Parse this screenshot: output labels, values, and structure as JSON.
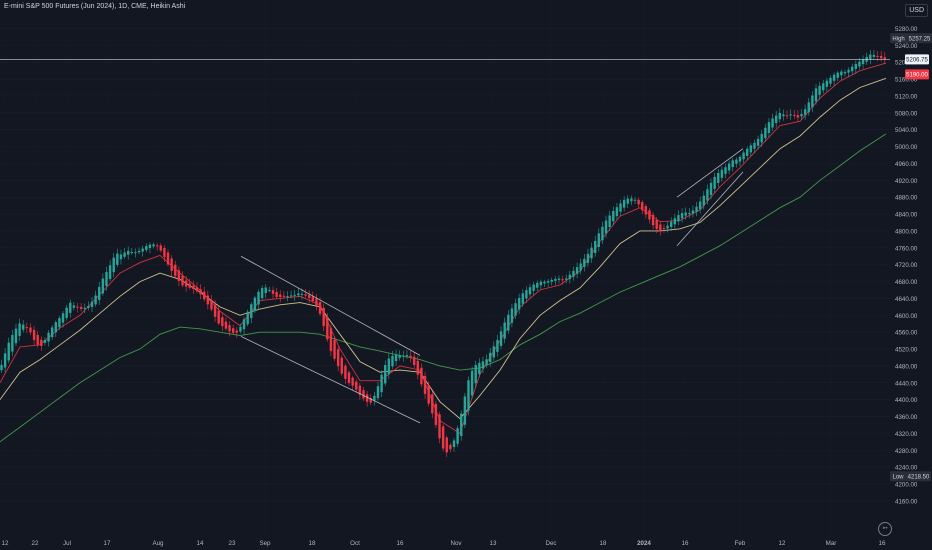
{
  "header": {
    "title": "E-mini S&P 500 Futures (Jun 2024), 1D, CME, Heikin Ashi",
    "currency": "USD"
  },
  "colors": {
    "background": "#131722",
    "up": "#26a69a",
    "down": "#f23645",
    "ema_red": "#f23645",
    "ema_yellow": "#f0e0a0",
    "sma_green": "#4caf50",
    "trendline": "#d1d4dc",
    "axis_text": "#b2b5be"
  },
  "icons": {
    "logo": "tradingview-logo-icon"
  },
  "chart_data": {
    "type": "candlestick",
    "title": "E-mini S&P 500 Futures (Jun 2024), 1D, CME, Heikin Ashi",
    "ylim": [
      4140,
      5320
    ],
    "y_ticks": [
      5280,
      5240,
      5200,
      5160,
      5120,
      5080,
      5040,
      5000,
      4960,
      4920,
      4880,
      4840,
      4800,
      4760,
      4720,
      4680,
      4640,
      4600,
      4560,
      4520,
      4480,
      4440,
      4400,
      4360,
      4320,
      4280,
      4240,
      4200,
      4160
    ],
    "y_tick_labels": [
      "5280.00",
      "5240.00",
      "5200.00",
      "5160.00",
      "5120.00",
      "5080.00",
      "5040.00",
      "5000.00",
      "4960.00",
      "4920.00",
      "4880.00",
      "4840.00",
      "4800.00",
      "4760.00",
      "4720.00",
      "4680.00",
      "4640.00",
      "4600.00",
      "4560.00",
      "4520.00",
      "4480.00",
      "4440.00",
      "4400.00",
      "4360.00",
      "4320.00",
      "4280.00",
      "4240.00",
      "4200.00",
      "4160.00"
    ],
    "x_tick_labels": [
      "12",
      "22",
      "Jul",
      "17",
      "Aug",
      "14",
      "23",
      "Sep",
      "18",
      "Oct",
      "16",
      "Nov",
      "13",
      "Dec",
      "18",
      "2024",
      "16",
      "Feb",
      "12",
      "Mar",
      "16"
    ],
    "price_labels": {
      "high_label": "High",
      "high_value": "5257.25",
      "low_label": "Low",
      "low_value": "4218.50",
      "last_value": "5206.75",
      "last_value_sub": "5190.00"
    },
    "horizontal_line": 5206.75,
    "close_path": [
      [
        0,
        4470
      ],
      [
        8,
        4530
      ],
      [
        14,
        4560
      ],
      [
        20,
        4580
      ],
      [
        24,
        4575
      ],
      [
        30,
        4560
      ],
      [
        36,
        4530
      ],
      [
        42,
        4525
      ],
      [
        48,
        4555
      ],
      [
        55,
        4580
      ],
      [
        62,
        4600
      ],
      [
        70,
        4630
      ],
      [
        76,
        4620
      ],
      [
        82,
        4615
      ],
      [
        90,
        4625
      ],
      [
        96,
        4650
      ],
      [
        102,
        4685
      ],
      [
        110,
        4720
      ],
      [
        116,
        4750
      ],
      [
        120,
        4745
      ],
      [
        128,
        4755
      ],
      [
        134,
        4750
      ],
      [
        140,
        4755
      ],
      [
        146,
        4765
      ],
      [
        152,
        4770
      ],
      [
        158,
        4765
      ],
      [
        164,
        4740
      ],
      [
        170,
        4710
      ],
      [
        176,
        4690
      ],
      [
        182,
        4670
      ],
      [
        188,
        4665
      ],
      [
        194,
        4660
      ],
      [
        200,
        4650
      ],
      [
        206,
        4630
      ],
      [
        212,
        4610
      ],
      [
        218,
        4580
      ],
      [
        224,
        4570
      ],
      [
        230,
        4560
      ],
      [
        236,
        4555
      ],
      [
        240,
        4570
      ],
      [
        246,
        4600
      ],
      [
        252,
        4630
      ],
      [
        258,
        4655
      ],
      [
        264,
        4670
      ],
      [
        270,
        4660
      ],
      [
        276,
        4645
      ],
      [
        282,
        4645
      ],
      [
        288,
        4648
      ],
      [
        294,
        4650
      ],
      [
        300,
        4655
      ],
      [
        306,
        4648
      ],
      [
        312,
        4638
      ],
      [
        318,
        4620
      ],
      [
        322,
        4590
      ],
      [
        326,
        4555
      ],
      [
        330,
        4520
      ],
      [
        336,
        4490
      ],
      [
        342,
        4460
      ],
      [
        348,
        4440
      ],
      [
        354,
        4430
      ],
      [
        360,
        4410
      ],
      [
        366,
        4395
      ],
      [
        370,
        4388
      ],
      [
        374,
        4405
      ],
      [
        378,
        4430
      ],
      [
        382,
        4460
      ],
      [
        386,
        4485
      ],
      [
        390,
        4500
      ],
      [
        396,
        4505
      ],
      [
        402,
        4502
      ],
      [
        408,
        4505
      ],
      [
        412,
        4495
      ],
      [
        416,
        4470
      ],
      [
        420,
        4445
      ],
      [
        424,
        4420
      ],
      [
        428,
        4395
      ],
      [
        432,
        4370
      ],
      [
        436,
        4340
      ],
      [
        440,
        4305
      ],
      [
        444,
        4280
      ],
      [
        448,
        4275
      ],
      [
        452,
        4290
      ],
      [
        456,
        4320
      ],
      [
        460,
        4355
      ],
      [
        464,
        4400
      ],
      [
        468,
        4445
      ],
      [
        472,
        4470
      ],
      [
        476,
        4485
      ],
      [
        480,
        4490
      ],
      [
        486,
        4495
      ],
      [
        492,
        4520
      ],
      [
        498,
        4545
      ],
      [
        504,
        4580
      ],
      [
        510,
        4610
      ],
      [
        516,
        4630
      ],
      [
        522,
        4650
      ],
      [
        528,
        4662
      ],
      [
        534,
        4672
      ],
      [
        540,
        4678
      ],
      [
        546,
        4678
      ],
      [
        552,
        4682
      ],
      [
        558,
        4686
      ],
      [
        564,
        4680
      ],
      [
        570,
        4695
      ],
      [
        576,
        4710
      ],
      [
        582,
        4725
      ],
      [
        588,
        4745
      ],
      [
        594,
        4770
      ],
      [
        600,
        4800
      ],
      [
        606,
        4825
      ],
      [
        612,
        4845
      ],
      [
        618,
        4860
      ],
      [
        624,
        4875
      ],
      [
        630,
        4880
      ],
      [
        636,
        4875
      ],
      [
        642,
        4852
      ],
      [
        648,
        4835
      ],
      [
        654,
        4812
      ],
      [
        660,
        4800
      ],
      [
        666,
        4810
      ],
      [
        672,
        4825
      ],
      [
        678,
        4838
      ],
      [
        684,
        4845
      ],
      [
        690,
        4842
      ],
      [
        696,
        4855
      ],
      [
        702,
        4875
      ],
      [
        708,
        4900
      ],
      [
        714,
        4925
      ],
      [
        720,
        4940
      ],
      [
        726,
        4950
      ],
      [
        732,
        4965
      ],
      [
        738,
        4968
      ],
      [
        744,
        4985
      ],
      [
        750,
        5000
      ],
      [
        756,
        5010
      ],
      [
        762,
        5030
      ],
      [
        768,
        5055
      ],
      [
        774,
        5070
      ],
      [
        780,
        5080
      ],
      [
        786,
        5074
      ],
      [
        792,
        5078
      ],
      [
        798,
        5070
      ],
      [
        804,
        5085
      ],
      [
        810,
        5112
      ],
      [
        816,
        5140
      ],
      [
        822,
        5150
      ],
      [
        828,
        5160
      ],
      [
        834,
        5172
      ],
      [
        840,
        5180
      ],
      [
        846,
        5178
      ],
      [
        852,
        5190
      ],
      [
        858,
        5200
      ],
      [
        864,
        5208
      ],
      [
        870,
        5218
      ],
      [
        876,
        5216
      ],
      [
        882,
        5207
      ],
      [
        886,
        5206
      ]
    ],
    "ema_red": [
      [
        0,
        4440
      ],
      [
        20,
        4525
      ],
      [
        40,
        4530
      ],
      [
        60,
        4570
      ],
      [
        80,
        4600
      ],
      [
        100,
        4650
      ],
      [
        120,
        4700
      ],
      [
        140,
        4725
      ],
      [
        160,
        4742
      ],
      [
        180,
        4700
      ],
      [
        200,
        4660
      ],
      [
        220,
        4610
      ],
      [
        240,
        4575
      ],
      [
        260,
        4635
      ],
      [
        280,
        4640
      ],
      [
        300,
        4645
      ],
      [
        320,
        4625
      ],
      [
        340,
        4520
      ],
      [
        360,
        4445
      ],
      [
        380,
        4445
      ],
      [
        400,
        4480
      ],
      [
        420,
        4470
      ],
      [
        440,
        4350
      ],
      [
        460,
        4320
      ],
      [
        480,
        4460
      ],
      [
        500,
        4540
      ],
      [
        520,
        4620
      ],
      [
        540,
        4660
      ],
      [
        560,
        4672
      ],
      [
        580,
        4705
      ],
      [
        600,
        4775
      ],
      [
        620,
        4835
      ],
      [
        640,
        4855
      ],
      [
        660,
        4822
      ],
      [
        680,
        4825
      ],
      [
        700,
        4850
      ],
      [
        720,
        4905
      ],
      [
        740,
        4950
      ],
      [
        760,
        5000
      ],
      [
        780,
        5050
      ],
      [
        800,
        5060
      ],
      [
        820,
        5115
      ],
      [
        840,
        5155
      ],
      [
        860,
        5180
      ],
      [
        886,
        5198
      ]
    ],
    "ema_yellow": [
      [
        0,
        4400
      ],
      [
        20,
        4465
      ],
      [
        40,
        4495
      ],
      [
        60,
        4530
      ],
      [
        80,
        4565
      ],
      [
        100,
        4605
      ],
      [
        120,
        4645
      ],
      [
        140,
        4680
      ],
      [
        160,
        4700
      ],
      [
        180,
        4685
      ],
      [
        200,
        4655
      ],
      [
        220,
        4620
      ],
      [
        240,
        4600
      ],
      [
        260,
        4615
      ],
      [
        280,
        4625
      ],
      [
        300,
        4630
      ],
      [
        320,
        4620
      ],
      [
        340,
        4555
      ],
      [
        360,
        4490
      ],
      [
        380,
        4465
      ],
      [
        400,
        4470
      ],
      [
        420,
        4465
      ],
      [
        440,
        4395
      ],
      [
        460,
        4355
      ],
      [
        480,
        4410
      ],
      [
        500,
        4470
      ],
      [
        520,
        4545
      ],
      [
        540,
        4600
      ],
      [
        560,
        4635
      ],
      [
        580,
        4665
      ],
      [
        600,
        4715
      ],
      [
        620,
        4770
      ],
      [
        640,
        4800
      ],
      [
        660,
        4800
      ],
      [
        680,
        4805
      ],
      [
        700,
        4820
      ],
      [
        720,
        4860
      ],
      [
        740,
        4905
      ],
      [
        760,
        4950
      ],
      [
        780,
        4995
      ],
      [
        800,
        5025
      ],
      [
        820,
        5070
      ],
      [
        840,
        5110
      ],
      [
        860,
        5140
      ],
      [
        886,
        5162
      ]
    ],
    "sma_green": [
      [
        0,
        4300
      ],
      [
        20,
        4335
      ],
      [
        40,
        4370
      ],
      [
        60,
        4405
      ],
      [
        80,
        4440
      ],
      [
        100,
        4470
      ],
      [
        120,
        4500
      ],
      [
        140,
        4520
      ],
      [
        160,
        4555
      ],
      [
        180,
        4572
      ],
      [
        200,
        4568
      ],
      [
        220,
        4560
      ],
      [
        240,
        4552
      ],
      [
        260,
        4560
      ],
      [
        280,
        4560
      ],
      [
        300,
        4560
      ],
      [
        320,
        4555
      ],
      [
        340,
        4540
      ],
      [
        360,
        4525
      ],
      [
        380,
        4515
      ],
      [
        400,
        4505
      ],
      [
        420,
        4495
      ],
      [
        440,
        4480
      ],
      [
        460,
        4470
      ],
      [
        480,
        4475
      ],
      [
        500,
        4495
      ],
      [
        520,
        4530
      ],
      [
        540,
        4555
      ],
      [
        560,
        4585
      ],
      [
        580,
        4605
      ],
      [
        600,
        4630
      ],
      [
        620,
        4655
      ],
      [
        640,
        4675
      ],
      [
        660,
        4695
      ],
      [
        680,
        4715
      ],
      [
        700,
        4740
      ],
      [
        720,
        4765
      ],
      [
        740,
        4795
      ],
      [
        760,
        4825
      ],
      [
        780,
        4855
      ],
      [
        800,
        4880
      ],
      [
        820,
        4920
      ],
      [
        840,
        4955
      ],
      [
        860,
        4990
      ],
      [
        886,
        5030
      ]
    ],
    "trendlines": [
      {
        "name": "upper-channel-line",
        "from": [
          241,
          4740
        ],
        "to": [
          420,
          4505
        ]
      },
      {
        "name": "lower-channel-line",
        "from": [
          241,
          4550
        ],
        "to": [
          420,
          4345
        ]
      },
      {
        "name": "rising-wedge-upper",
        "from": [
          677,
          4880
        ],
        "to": [
          743,
          4995
        ]
      },
      {
        "name": "rising-wedge-lower",
        "from": [
          677,
          4765
        ],
        "to": [
          743,
          4940
        ]
      }
    ]
  }
}
